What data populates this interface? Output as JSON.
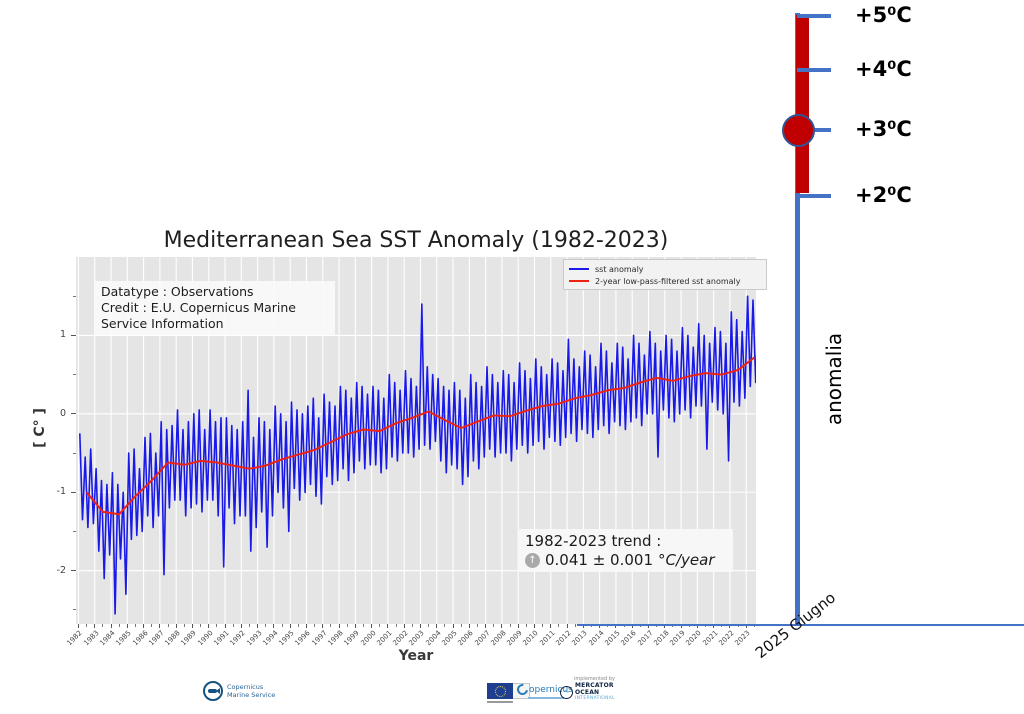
{
  "chart": {
    "title": "Mediterranean Sea SST Anomaly (1982-2023)",
    "info_lines": [
      "Datatype : Observations",
      "Credit : E.U. Copernicus Marine",
      "Service Information"
    ],
    "trend": {
      "line1": "1982-2023 trend :",
      "arrow": "↑",
      "value": "0.041 ± 0.001",
      "unit": "°C/year"
    },
    "xlabel": "Year",
    "ylabel": "[ C° ]",
    "legend": [
      {
        "label": "sst anomaly"
      },
      {
        "label": "2-year low-pass-filtered sst anomaly"
      }
    ]
  },
  "chart_data": {
    "type": "line",
    "title": "Mediterranean Sea SST Anomaly (1982-2023)",
    "xlabel": "Year",
    "ylabel": "[ C° ]",
    "grid": true,
    "legend_position": "upper right",
    "xlim": [
      1981.85,
      2023.6
    ],
    "ylim": [
      -2.68,
      2.0
    ],
    "x_ticks": [
      1982,
      1983,
      1984,
      1985,
      1986,
      1987,
      1988,
      1989,
      1990,
      1991,
      1992,
      1993,
      1994,
      1995,
      1996,
      1997,
      1998,
      1999,
      2000,
      2001,
      2002,
      2003,
      2004,
      2005,
      2006,
      2007,
      2008,
      2009,
      2010,
      2011,
      2012,
      2013,
      2014,
      2015,
      2016,
      2017,
      2018,
      2019,
      2020,
      2021,
      2022,
      2023
    ],
    "y_ticks": [
      1,
      0,
      -1,
      -2
    ],
    "y_tick_labels": [
      "1",
      "0",
      "-1",
      "-2"
    ],
    "y_minor_ticks": [
      1.5,
      0.5,
      -0.5,
      -1.5,
      -2.5
    ],
    "trend_annotation": "1982-2023 trend : 0.041 ± 0.001 °C/year",
    "series": [
      {
        "name": "sst anomaly",
        "color": "#1a1ae8",
        "x_start": 1982,
        "points_per_year": 6,
        "values": [
          -0.25,
          -1.35,
          -0.55,
          -1.45,
          -0.45,
          -1.4,
          -0.7,
          -1.75,
          -0.85,
          -2.1,
          -0.9,
          -1.8,
          -0.75,
          -2.55,
          -0.9,
          -1.85,
          -1.0,
          -2.3,
          -0.5,
          -1.6,
          -0.45,
          -1.55,
          -0.7,
          -1.5,
          -0.3,
          -1.3,
          -0.25,
          -1.45,
          -0.5,
          -1.3,
          -0.1,
          -2.05,
          -0.2,
          -1.2,
          -0.15,
          -1.1,
          0.05,
          -1.1,
          -0.2,
          -1.3,
          -0.1,
          -1.2,
          0.0,
          -1.15,
          0.05,
          -1.25,
          -0.2,
          -1.1,
          0.05,
          -1.1,
          -0.1,
          -1.3,
          -0.05,
          -1.95,
          -0.05,
          -1.2,
          -0.15,
          -1.4,
          -0.2,
          -1.3,
          -0.1,
          -1.3,
          0.3,
          -1.75,
          -0.3,
          -1.45,
          -0.05,
          -1.25,
          -0.1,
          -1.7,
          -0.2,
          -1.3,
          0.1,
          -1.0,
          0.0,
          -1.2,
          -0.1,
          -1.5,
          0.15,
          -0.95,
          0.05,
          -1.1,
          0.0,
          -1.0,
          0.1,
          -0.9,
          0.2,
          -1.05,
          -0.05,
          -1.15,
          0.25,
          -0.8,
          0.15,
          -0.9,
          0.1,
          -0.85,
          0.35,
          -0.7,
          0.3,
          -0.85,
          0.2,
          -0.75,
          0.4,
          -0.6,
          0.35,
          -0.7,
          0.25,
          -0.65,
          0.35,
          -0.65,
          0.3,
          -0.75,
          0.2,
          -0.7,
          0.5,
          -0.55,
          0.4,
          -0.6,
          0.3,
          -0.5,
          0.55,
          -0.5,
          0.45,
          -0.55,
          0.35,
          -0.45,
          1.4,
          -0.4,
          0.6,
          -0.45,
          0.5,
          -0.35,
          0.45,
          -0.6,
          0.35,
          -0.75,
          0.3,
          -0.65,
          0.4,
          -0.7,
          0.3,
          -0.9,
          0.2,
          -0.8,
          0.5,
          -0.6,
          0.4,
          -0.7,
          0.35,
          -0.55,
          0.6,
          -0.45,
          0.5,
          -0.55,
          0.4,
          -0.5,
          0.55,
          -0.5,
          0.5,
          -0.6,
          0.4,
          -0.45,
          0.65,
          -0.4,
          0.55,
          -0.5,
          0.45,
          -0.4,
          0.7,
          -0.35,
          0.6,
          -0.45,
          0.5,
          -0.3,
          0.7,
          -0.35,
          0.65,
          -0.4,
          0.55,
          -0.3,
          0.95,
          -0.25,
          0.7,
          -0.35,
          0.6,
          -0.2,
          0.8,
          -0.25,
          0.75,
          -0.3,
          0.6,
          -0.2,
          0.9,
          -0.15,
          0.8,
          -0.25,
          0.65,
          -0.1,
          0.9,
          -0.15,
          0.85,
          -0.2,
          0.7,
          -0.1,
          1.0,
          -0.05,
          0.9,
          -0.15,
          0.75,
          0.0,
          1.05,
          0.0,
          0.9,
          -0.55,
          0.8,
          0.05,
          1.0,
          -0.05,
          0.95,
          -0.1,
          0.8,
          0.0,
          1.1,
          0.05,
          1.0,
          -0.05,
          0.85,
          0.1,
          1.15,
          0.1,
          1.0,
          -0.45,
          0.9,
          0.15,
          1.1,
          0.05,
          1.05,
          0.0,
          0.9,
          -0.6,
          1.3,
          0.15,
          1.2,
          0.1,
          1.05,
          0.2,
          1.5,
          0.35,
          1.45,
          0.4,
          1.3,
          1.2
        ]
      },
      {
        "name": "2-year low-pass-filtered sst anomaly",
        "color": "#ee2211",
        "x_start": 1982,
        "points_per_year": 1,
        "values": [
          -1.0,
          -1.25,
          -1.28,
          -1.05,
          -0.85,
          -0.62,
          -0.65,
          -0.6,
          -0.62,
          -0.66,
          -0.7,
          -0.66,
          -0.58,
          -0.52,
          -0.46,
          -0.36,
          -0.26,
          -0.2,
          -0.22,
          -0.12,
          -0.05,
          0.03,
          -0.08,
          -0.18,
          -0.1,
          -0.02,
          -0.03,
          0.04,
          0.1,
          0.13,
          0.2,
          0.24,
          0.3,
          0.33,
          0.4,
          0.46,
          0.42,
          0.48,
          0.52,
          0.5,
          0.56,
          0.72
        ]
      }
    ]
  },
  "thermometer": {
    "scale_labels": [
      "+5⁰C",
      "+4⁰C",
      "+3⁰C",
      "+2⁰C"
    ],
    "axis_label": "anomalia",
    "date_label": "2025 Giugno",
    "line_color": "#4472c4",
    "bar_color": "#c00000"
  },
  "footer": {
    "marine_service": {
      "line1": "Copernicus",
      "line2": "Marine Service"
    },
    "copernicus_wordmark": "opernicus",
    "mercator": {
      "implemented_by": "implemented by",
      "line1": "MERCATOR",
      "line2": "OCEAN",
      "line3": "INTERNATIONAL",
      "wave": "〜"
    }
  }
}
